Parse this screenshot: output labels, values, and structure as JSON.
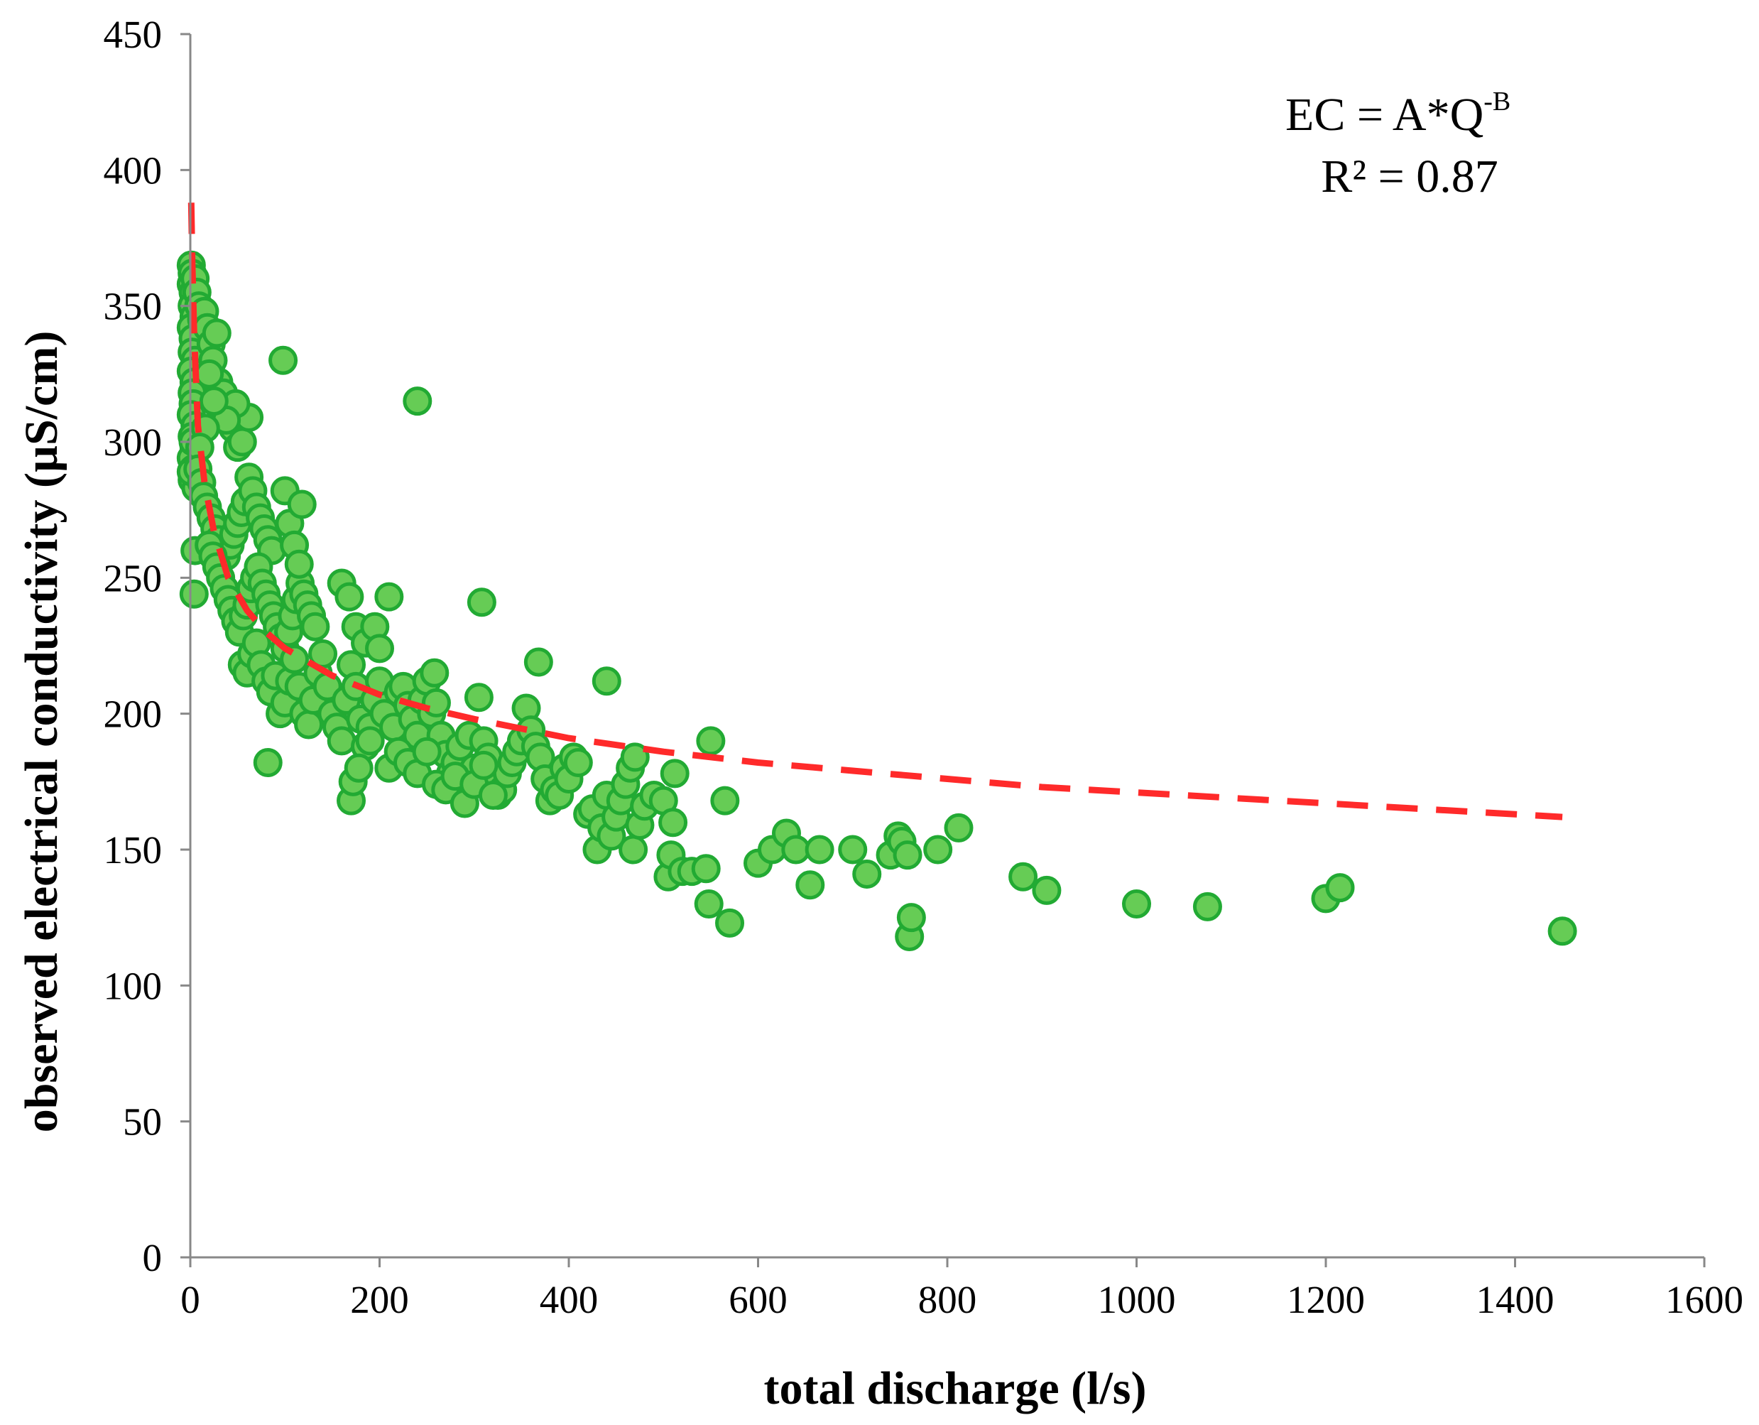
{
  "chart_data": {
    "type": "scatter",
    "xlabel": "total discharge (l/s)",
    "ylabel": "observed electrical conductivity (µS/cm)",
    "xlim": [
      0,
      1600
    ],
    "ylim": [
      0,
      450
    ],
    "x_ticks": [
      "0",
      "200",
      "400",
      "600",
      "800",
      "1000",
      "1200",
      "1400",
      "1600"
    ],
    "y_ticks": [
      "0",
      "50",
      "100",
      "150",
      "200",
      "250",
      "300",
      "350",
      "400",
      "450"
    ],
    "grid": false,
    "annotation": {
      "equation_main": "EC = A*Q",
      "equation_exponent": "-B",
      "r_squared": "R² = 0.87"
    },
    "colors": {
      "marker_fill": "#66cc55",
      "marker_edge": "#22aa33",
      "fit_line": "#ff2a2a",
      "axis": "#888888"
    },
    "fit": {
      "model": "power",
      "style": "dashed",
      "x": [
        1,
        2,
        4,
        8,
        15,
        25,
        40,
        60,
        80,
        100,
        150,
        200,
        250,
        300,
        400,
        500,
        600,
        700,
        800,
        900,
        1000,
        1100,
        1200,
        1300,
        1450
      ],
      "y": [
        388,
        367,
        340,
        306,
        285,
        267,
        250,
        238,
        230,
        224,
        214,
        207,
        202,
        198,
        191,
        186,
        182,
        179,
        176,
        173,
        171,
        169,
        167,
        165,
        162
      ]
    },
    "series": [
      {
        "marker": "circle",
        "points": [
          [
            1,
            365
          ],
          [
            2,
            362
          ],
          [
            1,
            358
          ],
          [
            3,
            355
          ],
          [
            2,
            350
          ],
          [
            4,
            346
          ],
          [
            1,
            342
          ],
          [
            3,
            338
          ],
          [
            2,
            333
          ],
          [
            5,
            330
          ],
          [
            1,
            326
          ],
          [
            4,
            322
          ],
          [
            2,
            318
          ],
          [
            3,
            314
          ],
          [
            1,
            310
          ],
          [
            5,
            306
          ],
          [
            2,
            302
          ],
          [
            4,
            298
          ],
          [
            1,
            294
          ],
          [
            3,
            290
          ],
          [
            2,
            286
          ],
          [
            6,
            283
          ],
          [
            1,
            289
          ],
          [
            3,
            300
          ],
          [
            5,
            360
          ],
          [
            7,
            355
          ],
          [
            9,
            350
          ],
          [
            12,
            345
          ],
          [
            15,
            348
          ],
          [
            18,
            342
          ],
          [
            22,
            336
          ],
          [
            28,
            340
          ],
          [
            24,
            330
          ],
          [
            30,
            322
          ],
          [
            35,
            318
          ],
          [
            40,
            312
          ],
          [
            45,
            305
          ],
          [
            50,
            298
          ],
          [
            55,
            300
          ],
          [
            62,
            309
          ],
          [
            48,
            314
          ],
          [
            38,
            308
          ],
          [
            20,
            325
          ],
          [
            25,
            315
          ],
          [
            16,
            305
          ],
          [
            10,
            298
          ],
          [
            8,
            290
          ],
          [
            12,
            285
          ],
          [
            14,
            280
          ],
          [
            18,
            276
          ],
          [
            22,
            272
          ],
          [
            26,
            268
          ],
          [
            30,
            264
          ],
          [
            34,
            260
          ],
          [
            38,
            258
          ],
          [
            42,
            262
          ],
          [
            46,
            266
          ],
          [
            50,
            270
          ],
          [
            54,
            274
          ],
          [
            58,
            278
          ],
          [
            62,
            287
          ],
          [
            66,
            282
          ],
          [
            70,
            276
          ],
          [
            74,
            272
          ],
          [
            78,
            268
          ],
          [
            82,
            264
          ],
          [
            86,
            260
          ],
          [
            5,
            260
          ],
          [
            4,
            244
          ],
          [
            20,
            262
          ],
          [
            24,
            258
          ],
          [
            28,
            254
          ],
          [
            32,
            250
          ],
          [
            36,
            246
          ],
          [
            40,
            242
          ],
          [
            44,
            238
          ],
          [
            48,
            234
          ],
          [
            52,
            230
          ],
          [
            56,
            236
          ],
          [
            60,
            240
          ],
          [
            64,
            246
          ],
          [
            68,
            250
          ],
          [
            72,
            254
          ],
          [
            76,
            248
          ],
          [
            80,
            244
          ],
          [
            84,
            240
          ],
          [
            88,
            236
          ],
          [
            92,
            232
          ],
          [
            96,
            228
          ],
          [
            100,
            224
          ],
          [
            104,
            230
          ],
          [
            108,
            236
          ],
          [
            112,
            242
          ],
          [
            116,
            248
          ],
          [
            120,
            244
          ],
          [
            124,
            240
          ],
          [
            128,
            236
          ],
          [
            132,
            232
          ],
          [
            55,
            218
          ],
          [
            60,
            215
          ],
          [
            65,
            222
          ],
          [
            70,
            226
          ],
          [
            75,
            218
          ],
          [
            80,
            212
          ],
          [
            85,
            208
          ],
          [
            90,
            214
          ],
          [
            95,
            200
          ],
          [
            100,
            204
          ],
          [
            105,
            212
          ],
          [
            110,
            220
          ],
          [
            115,
            210
          ],
          [
            120,
            200
          ],
          [
            125,
            196
          ],
          [
            130,
            205
          ],
          [
            135,
            215
          ],
          [
            140,
            222
          ],
          [
            145,
            210
          ],
          [
            150,
            200
          ],
          [
            155,
            195
          ],
          [
            160,
            190
          ],
          [
            165,
            205
          ],
          [
            170,
            218
          ],
          [
            175,
            210
          ],
          [
            180,
            198
          ],
          [
            185,
            188
          ],
          [
            190,
            195
          ],
          [
            195,
            205
          ],
          [
            200,
            212
          ],
          [
            100,
            282
          ],
          [
            105,
            270
          ],
          [
            110,
            262
          ],
          [
            115,
            255
          ],
          [
            118,
            277
          ],
          [
            98,
            330
          ],
          [
            160,
            248
          ],
          [
            168,
            243
          ],
          [
            175,
            232
          ],
          [
            185,
            226
          ],
          [
            195,
            232
          ],
          [
            200,
            224
          ],
          [
            210,
            243
          ],
          [
            82,
            182
          ],
          [
            170,
            168
          ],
          [
            172,
            175
          ],
          [
            178,
            180
          ],
          [
            190,
            190
          ],
          [
            205,
            200
          ],
          [
            215,
            195
          ],
          [
            220,
            208
          ],
          [
            225,
            210
          ],
          [
            230,
            203
          ],
          [
            235,
            198
          ],
          [
            240,
            192
          ],
          [
            245,
            205
          ],
          [
            250,
            212
          ],
          [
            255,
            200
          ],
          [
            258,
            215
          ],
          [
            260,
            204
          ],
          [
            265,
            192
          ],
          [
            270,
            185
          ],
          [
            275,
            178
          ],
          [
            280,
            182
          ],
          [
            285,
            188
          ],
          [
            290,
            176
          ],
          [
            295,
            192
          ],
          [
            300,
            180
          ],
          [
            305,
            206
          ],
          [
            310,
            190
          ],
          [
            315,
            184
          ],
          [
            320,
            176
          ],
          [
            325,
            170
          ],
          [
            330,
            172
          ],
          [
            335,
            178
          ],
          [
            340,
            182
          ],
          [
            345,
            186
          ],
          [
            350,
            190
          ],
          [
            355,
            202
          ],
          [
            360,
            194
          ],
          [
            365,
            188
          ],
          [
            370,
            184
          ],
          [
            375,
            176
          ],
          [
            380,
            168
          ],
          [
            385,
            172
          ],
          [
            390,
            170
          ],
          [
            395,
            180
          ],
          [
            400,
            176
          ],
          [
            405,
            184
          ],
          [
            410,
            182
          ],
          [
            210,
            180
          ],
          [
            220,
            186
          ],
          [
            230,
            182
          ],
          [
            240,
            178
          ],
          [
            250,
            186
          ],
          [
            260,
            174
          ],
          [
            270,
            172
          ],
          [
            280,
            177
          ],
          [
            290,
            167
          ],
          [
            300,
            174
          ],
          [
            310,
            181
          ],
          [
            320,
            170
          ],
          [
            240,
            315
          ],
          [
            308,
            241
          ],
          [
            368,
            219
          ],
          [
            440,
            212
          ],
          [
            420,
            163
          ],
          [
            425,
            165
          ],
          [
            430,
            150
          ],
          [
            435,
            158
          ],
          [
            440,
            170
          ],
          [
            445,
            155
          ],
          [
            450,
            162
          ],
          [
            455,
            168
          ],
          [
            460,
            174
          ],
          [
            465,
            180
          ],
          [
            470,
            184
          ],
          [
            468,
            150
          ],
          [
            475,
            159
          ],
          [
            480,
            166
          ],
          [
            490,
            170
          ],
          [
            500,
            168
          ],
          [
            505,
            140
          ],
          [
            508,
            148
          ],
          [
            510,
            160
          ],
          [
            512,
            178
          ],
          [
            520,
            142
          ],
          [
            530,
            142
          ],
          [
            545,
            143
          ],
          [
            548,
            130
          ],
          [
            550,
            190
          ],
          [
            565,
            168
          ],
          [
            570,
            123
          ],
          [
            600,
            145
          ],
          [
            615,
            150
          ],
          [
            630,
            156
          ],
          [
            640,
            150
          ],
          [
            655,
            137
          ],
          [
            665,
            150
          ],
          [
            700,
            150
          ],
          [
            715,
            141
          ],
          [
            740,
            148
          ],
          [
            748,
            155
          ],
          [
            752,
            153
          ],
          [
            758,
            148
          ],
          [
            760,
            118
          ],
          [
            762,
            125
          ],
          [
            790,
            150
          ],
          [
            812,
            158
          ],
          [
            880,
            140
          ],
          [
            905,
            135
          ],
          [
            1000,
            130
          ],
          [
            1075,
            129
          ],
          [
            1200,
            132
          ],
          [
            1215,
            136
          ],
          [
            1450,
            120
          ]
        ]
      }
    ]
  }
}
